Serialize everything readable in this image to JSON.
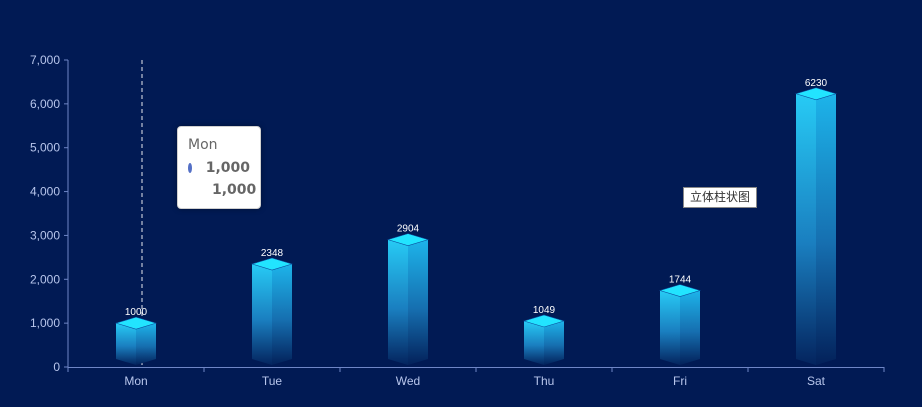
{
  "chart_data": {
    "type": "bar",
    "categories": [
      "Mon",
      "Tue",
      "Wed",
      "Thu",
      "Fri",
      "Sat"
    ],
    "values": [
      1000,
      2348,
      2904,
      1049,
      1744,
      6230
    ],
    "ylim": [
      0,
      7000
    ],
    "y_ticks": [
      0,
      1000,
      2000,
      3000,
      4000,
      5000,
      6000,
      7000
    ],
    "y_tick_labels": [
      "0",
      "1,000",
      "2,000",
      "3,000",
      "4,000",
      "5,000",
      "6,000",
      "7,000"
    ],
    "grid": false,
    "style": "3d-bar"
  },
  "tooltip": {
    "category": "Mon",
    "value_primary": "1,000",
    "value_secondary": "1,000",
    "dot_color": "#5470c6"
  },
  "legend": {
    "label": "立体柱状图",
    "placement": "right"
  },
  "colors": {
    "background": "#011a54",
    "bar_top": "#1ec8f6",
    "bar_bottom": "#03255e",
    "bar_cap": "#22e4ff",
    "axis": "#6f86c6",
    "axis_text": "#b8c6ec"
  }
}
